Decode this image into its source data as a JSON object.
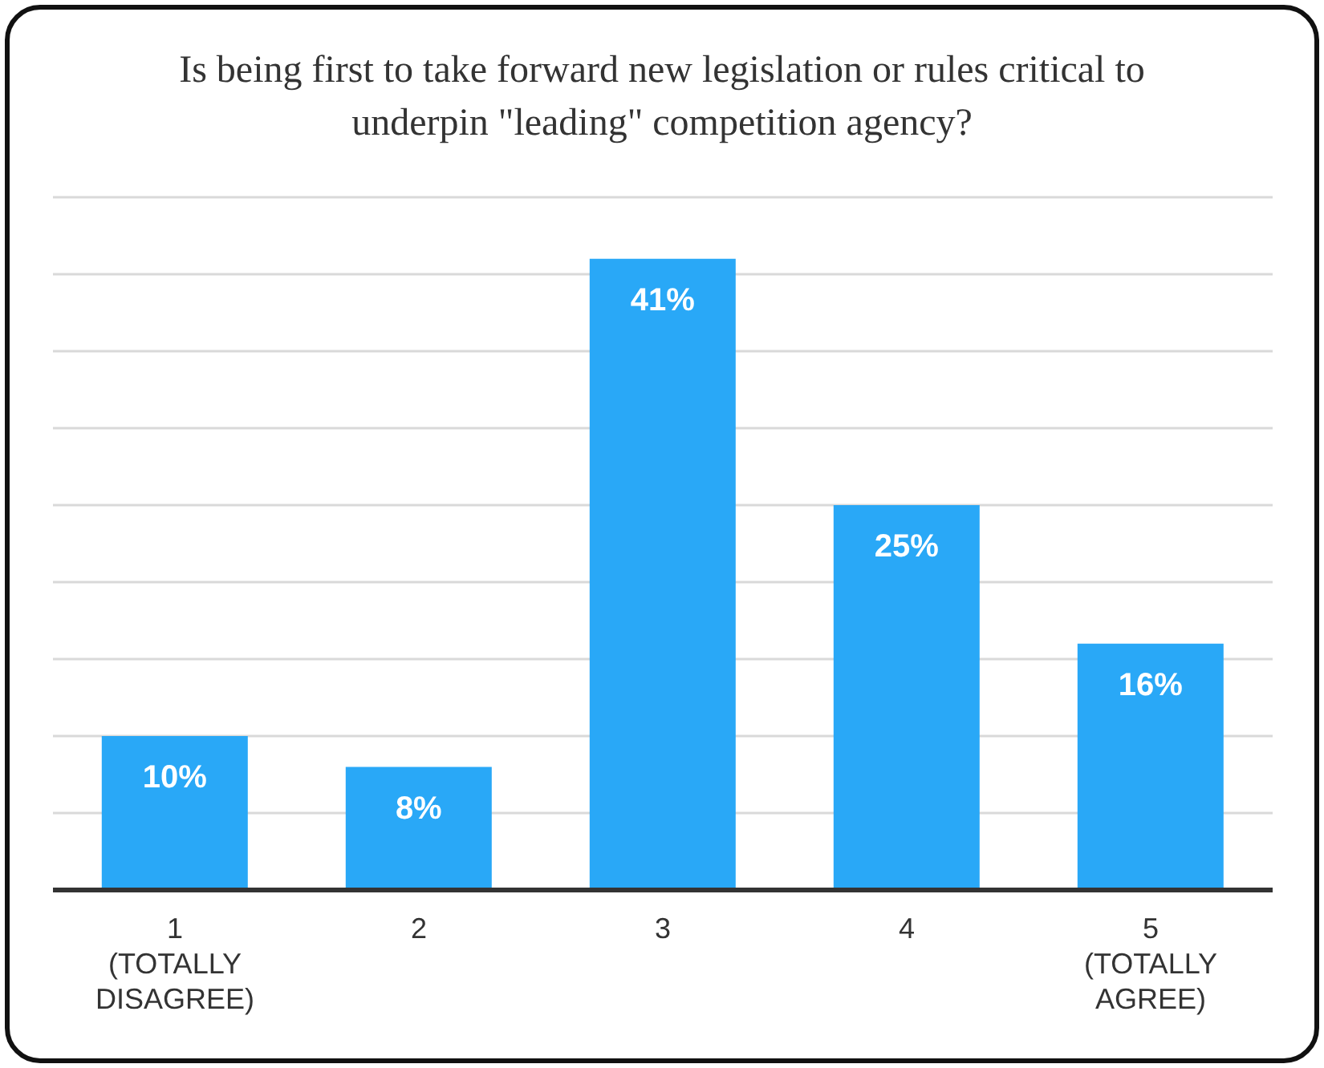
{
  "chart_data": {
    "type": "bar",
    "title": "Is being first to take forward new legislation or rules critical to underpin \"leading\" competition agency?",
    "categories": [
      "1 (TOTALLY DISAGREE)",
      "2",
      "3",
      "4",
      "5 (TOTALLY AGREE)"
    ],
    "values": [
      10,
      8,
      41,
      25,
      16
    ],
    "value_labels": [
      "10%",
      "8%",
      "41%",
      "25%",
      "16%"
    ],
    "color": "#29a8f7",
    "grid": "y",
    "tick_labels": "x"
  }
}
